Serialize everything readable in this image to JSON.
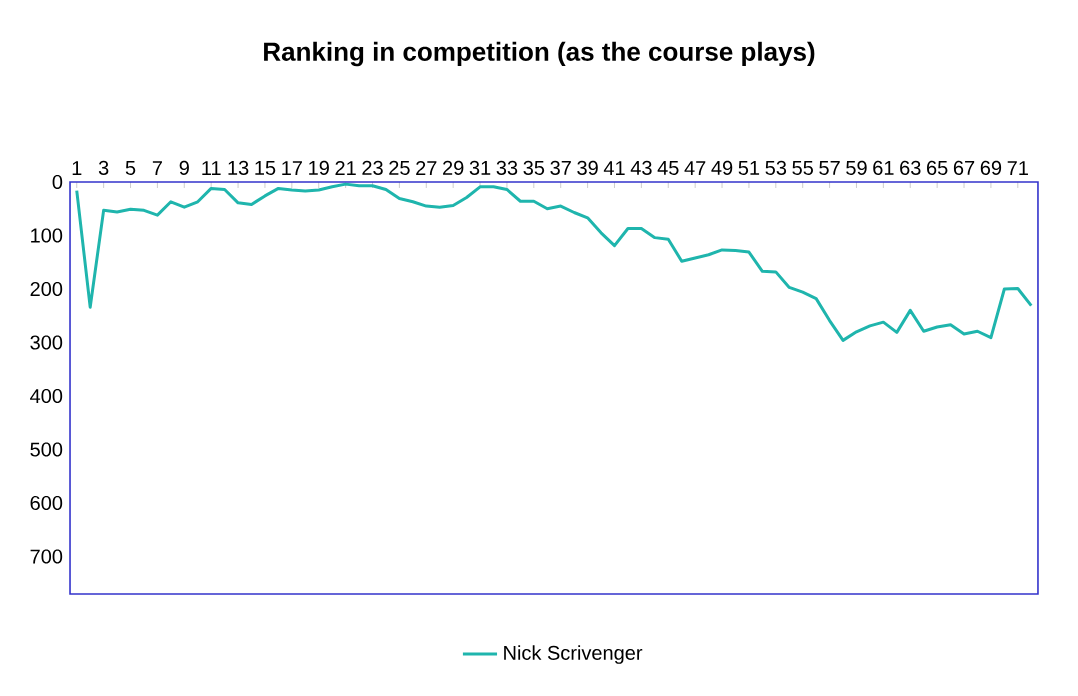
{
  "chart_data": {
    "type": "line",
    "title": "Ranking in competition (as the course plays)",
    "categories": [
      "1",
      null,
      "3",
      null,
      "5",
      null,
      "7",
      null,
      "9",
      null,
      "11",
      null,
      "13",
      null,
      "15",
      null,
      "17",
      null,
      "19",
      null,
      "21",
      null,
      "23",
      null,
      "25",
      null,
      "27",
      null,
      "29",
      null,
      "31",
      null,
      "33",
      null,
      "35",
      null,
      "37",
      null,
      "39",
      null,
      "41",
      null,
      "43",
      null,
      "45",
      null,
      "47",
      null,
      "49",
      null,
      "51",
      null,
      "53",
      null,
      "55",
      null,
      "57",
      null,
      "59",
      null,
      "61",
      null,
      "63",
      null,
      "65",
      null,
      "67",
      null,
      "69",
      null,
      "71",
      null
    ],
    "series": [
      {
        "name": "Nick Scrivenger",
        "color": "#1fb5ad",
        "values": [
          16,
          234,
          53,
          56,
          51,
          53,
          62,
          37,
          47,
          37,
          12,
          14,
          39,
          42,
          26,
          12,
          15,
          17,
          15,
          9,
          4,
          7,
          7,
          14,
          31,
          37,
          45,
          47,
          44,
          29,
          9,
          9,
          14,
          36,
          36,
          50,
          45,
          57,
          67,
          95,
          119,
          87,
          87,
          104,
          107,
          148,
          142,
          136,
          127,
          128,
          131,
          167,
          168,
          197,
          206,
          218,
          259,
          296,
          280,
          269,
          262,
          281,
          240,
          279,
          271,
          267,
          284,
          279,
          291,
          200,
          199,
          231
        ]
      }
    ],
    "ylim": [
      770,
      0
    ],
    "yticks": [
      0,
      100,
      200,
      300,
      400,
      500,
      600,
      700
    ],
    "legend": "bottom",
    "marker": "none",
    "line_style": "solid",
    "grid": false
  }
}
